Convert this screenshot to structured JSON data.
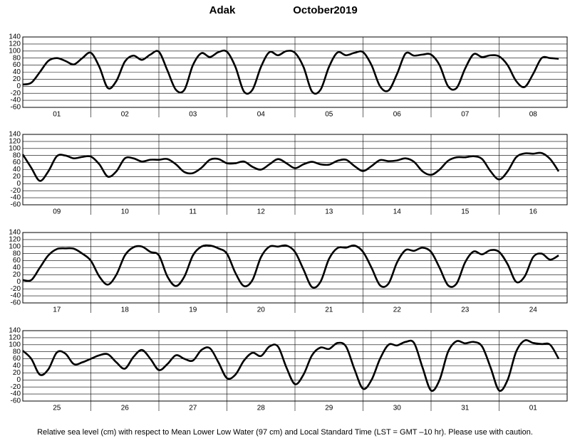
{
  "header": {
    "station": "Adak",
    "month": "October",
    "year": "2019"
  },
  "footer": "Relative sea level (cm) with respect to Mean Lower Low Water (97 cm) and Local Standard Time (LST = GMT –10 hr). Please use with caution.",
  "chart_data": [
    {
      "type": "line",
      "color": "#000000",
      "grid": true,
      "ylim": [
        -60,
        140
      ],
      "yticks": [
        -60,
        -40,
        -20,
        0,
        20,
        40,
        60,
        80,
        100,
        120,
        140
      ],
      "categories": [
        "01",
        "02",
        "03",
        "04",
        "05",
        "06",
        "07",
        "08"
      ],
      "values": [
        [
          5,
          10,
          40,
          72,
          80,
          72,
          62,
          80
        ],
        [
          95,
          55,
          -5,
          15,
          70,
          87,
          75,
          90
        ],
        [
          98,
          45,
          -10,
          -10,
          60,
          94,
          83,
          97
        ],
        [
          98,
          55,
          -15,
          -10,
          55,
          97,
          88,
          100
        ],
        [
          95,
          55,
          -15,
          -10,
          55,
          96,
          88,
          95
        ],
        [
          97,
          60,
          0,
          -12,
          35,
          93,
          87,
          90
        ],
        [
          90,
          60,
          0,
          -5,
          50,
          91,
          83,
          88
        ],
        [
          85,
          60,
          15,
          -2,
          35,
          80,
          80,
          78
        ]
      ]
    },
    {
      "type": "line",
      "color": "#000000",
      "grid": true,
      "ylim": [
        -60,
        140
      ],
      "yticks": [
        -60,
        -40,
        -20,
        0,
        20,
        40,
        60,
        80,
        100,
        120,
        140
      ],
      "categories": [
        "09",
        "10",
        "11",
        "12",
        "13",
        "14",
        "15",
        "16"
      ],
      "values": [
        [
          83,
          45,
          8,
          35,
          78,
          80,
          72,
          76
        ],
        [
          77,
          55,
          20,
          35,
          72,
          72,
          63,
          68
        ],
        [
          68,
          70,
          55,
          33,
          30,
          45,
          68,
          70
        ],
        [
          58,
          58,
          63,
          48,
          40,
          55,
          70,
          58
        ],
        [
          44,
          55,
          62,
          55,
          54,
          65,
          68,
          50
        ],
        [
          36,
          50,
          67,
          64,
          66,
          72,
          62,
          35
        ],
        [
          25,
          40,
          65,
          75,
          75,
          78,
          70,
          35
        ],
        [
          12,
          35,
          75,
          86,
          85,
          87,
          70,
          35
        ]
      ]
    },
    {
      "type": "line",
      "color": "#000000",
      "grid": true,
      "ylim": [
        -60,
        140
      ],
      "yticks": [
        -60,
        -40,
        -20,
        0,
        20,
        40,
        60,
        80,
        100,
        120,
        140
      ],
      "categories": [
        "17",
        "18",
        "19",
        "20",
        "21",
        "22",
        "23",
        "24"
      ],
      "values": [
        [
          5,
          5,
          40,
          75,
          93,
          95,
          94,
          80
        ],
        [
          60,
          15,
          -8,
          20,
          75,
          98,
          100,
          85
        ],
        [
          75,
          15,
          -12,
          15,
          75,
          100,
          103,
          95
        ],
        [
          80,
          25,
          -12,
          5,
          70,
          100,
          100,
          103
        ],
        [
          85,
          35,
          -15,
          0,
          65,
          96,
          97,
          103
        ],
        [
          85,
          40,
          -10,
          -5,
          55,
          90,
          88,
          97
        ],
        [
          85,
          40,
          -10,
          -5,
          55,
          86,
          78,
          90
        ],
        [
          85,
          50,
          0,
          15,
          70,
          80,
          63,
          75
        ]
      ]
    },
    {
      "type": "line",
      "color": "#000000",
      "grid": true,
      "ylim": [
        -60,
        140
      ],
      "yticks": [
        -60,
        -40,
        -20,
        0,
        20,
        40,
        60,
        80,
        100,
        120,
        140
      ],
      "categories": [
        "25",
        "26",
        "27",
        "28",
        "29",
        "30",
        "31",
        "01"
      ],
      "values": [
        [
          83,
          60,
          15,
          30,
          78,
          75,
          45,
          50
        ],
        [
          60,
          70,
          73,
          50,
          32,
          65,
          85,
          60
        ],
        [
          28,
          45,
          70,
          60,
          55,
          85,
          90,
          50
        ],
        [
          5,
          15,
          55,
          77,
          68,
          95,
          95,
          35
        ],
        [
          -12,
          15,
          70,
          92,
          88,
          105,
          95,
          30
        ],
        [
          -25,
          0,
          60,
          100,
          98,
          108,
          105,
          35
        ],
        [
          -30,
          0,
          80,
          110,
          104,
          108,
          95,
          35
        ],
        [
          -30,
          0,
          80,
          112,
          105,
          102,
          100,
          60
        ]
      ]
    }
  ]
}
